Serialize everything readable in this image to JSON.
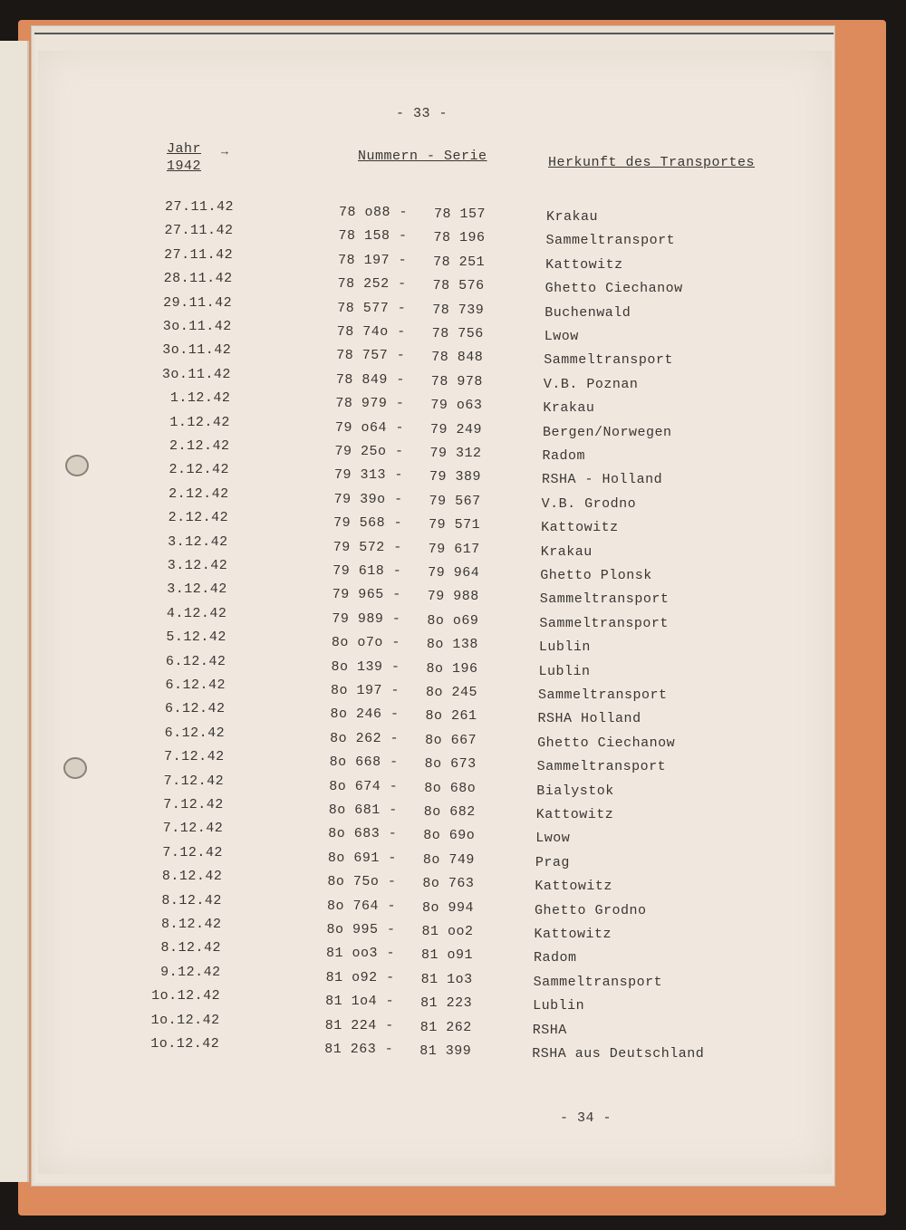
{
  "page_number_top": "- 33 -",
  "page_number_bottom": "- 34 -",
  "header": {
    "year_label": "Jahr",
    "year_value": "1942",
    "number_series": "Nummern - Serie",
    "origin": "Herkunft des Transportes"
  },
  "rows": [
    {
      "date": "27.11.42",
      "from": "78 o88 -",
      "to": "78 157",
      "origin": "Krakau"
    },
    {
      "date": "27.11.42",
      "from": "78 158 -",
      "to": "78 196",
      "origin": "Sammeltransport"
    },
    {
      "date": "27.11.42",
      "from": "78 197 -",
      "to": "78 251",
      "origin": "Kattowitz"
    },
    {
      "date": "28.11.42",
      "from": "78 252 -",
      "to": "78 576",
      "origin": "Ghetto Ciechanow"
    },
    {
      "date": "29.11.42",
      "from": "78 577 -",
      "to": "78 739",
      "origin": "Buchenwald"
    },
    {
      "date": "3o.11.42",
      "from": "78 74o -",
      "to": "78 756",
      "origin": "Lwow"
    },
    {
      "date": "3o.11.42",
      "from": "78 757 -",
      "to": "78 848",
      "origin": "Sammeltransport"
    },
    {
      "date": "3o.11.42",
      "from": "78 849 -",
      "to": "78 978",
      "origin": "V.B. Poznan"
    },
    {
      "date": "1.12.42",
      "from": "78 979 -",
      "to": "79 o63",
      "origin": "Krakau"
    },
    {
      "date": "1.12.42",
      "from": "79 o64 -",
      "to": "79 249",
      "origin": "Bergen/Norwegen"
    },
    {
      "date": "2.12.42",
      "from": "79 25o -",
      "to": "79 312",
      "origin": "Radom"
    },
    {
      "date": "2.12.42",
      "from": "79 313 -",
      "to": "79 389",
      "origin": "RSHA - Holland"
    },
    {
      "date": "2.12.42",
      "from": "79 39o -",
      "to": "79 567",
      "origin": "V.B. Grodno"
    },
    {
      "date": "2.12.42",
      "from": "79 568 -",
      "to": "79 571",
      "origin": "Kattowitz"
    },
    {
      "date": "3.12.42",
      "from": "79 572 -",
      "to": "79 617",
      "origin": "Krakau"
    },
    {
      "date": "3.12.42",
      "from": "79 618 -",
      "to": "79 964",
      "origin": "Ghetto Plonsk"
    },
    {
      "date": "3.12.42",
      "from": "79 965 -",
      "to": "79 988",
      "origin": "Sammeltransport"
    },
    {
      "date": "4.12.42",
      "from": "79 989 -",
      "to": "8o o69",
      "origin": "Sammeltransport"
    },
    {
      "date": "5.12.42",
      "from": "8o o7o -",
      "to": "8o 138",
      "origin": "Lublin"
    },
    {
      "date": "6.12.42",
      "from": "8o 139 -",
      "to": "8o 196",
      "origin": "Lublin"
    },
    {
      "date": "6.12.42",
      "from": "8o 197 -",
      "to": "8o 245",
      "origin": "Sammeltransport"
    },
    {
      "date": "6.12.42",
      "from": "8o 246 -",
      "to": "8o 261",
      "origin": "RSHA Holland"
    },
    {
      "date": "6.12.42",
      "from": "8o 262 -",
      "to": "8o 667",
      "origin": "Ghetto Ciechanow"
    },
    {
      "date": "7.12.42",
      "from": "8o 668 -",
      "to": "8o 673",
      "origin": "Sammeltransport"
    },
    {
      "date": "7.12.42",
      "from": "8o 674 -",
      "to": "8o 68o",
      "origin": "Bialystok"
    },
    {
      "date": "7.12.42",
      "from": "8o 681 -",
      "to": "8o 682",
      "origin": "Kattowitz"
    },
    {
      "date": "7.12.42",
      "from": "8o 683 -",
      "to": "8o 69o",
      "origin": "Lwow"
    },
    {
      "date": "7.12.42",
      "from": "8o 691 -",
      "to": "8o 749",
      "origin": "Prag"
    },
    {
      "date": "8.12.42",
      "from": "8o 75o -",
      "to": "8o 763",
      "origin": "Kattowitz"
    },
    {
      "date": "8.12.42",
      "from": "8o 764 -",
      "to": "8o 994",
      "origin": "Ghetto Grodno"
    },
    {
      "date": "8.12.42",
      "from": "8o 995 -",
      "to": "81 oo2",
      "origin": "Kattowitz"
    },
    {
      "date": "8.12.42",
      "from": "81 oo3 -",
      "to": "81 o91",
      "origin": "Radom"
    },
    {
      "date": "9.12.42",
      "from": "81 o92 -",
      "to": "81 1o3",
      "origin": "Sammeltransport"
    },
    {
      "date": "1o.12.42",
      "from": "81 1o4 -",
      "to": "81 223",
      "origin": "Lublin"
    },
    {
      "date": "1o.12.42",
      "from": "81 224 -",
      "to": "81 262",
      "origin": "RSHA"
    },
    {
      "date": "1o.12.42",
      "from": "81 263 -",
      "to": "81 399",
      "origin": "RSHA aus Deutschland"
    }
  ]
}
